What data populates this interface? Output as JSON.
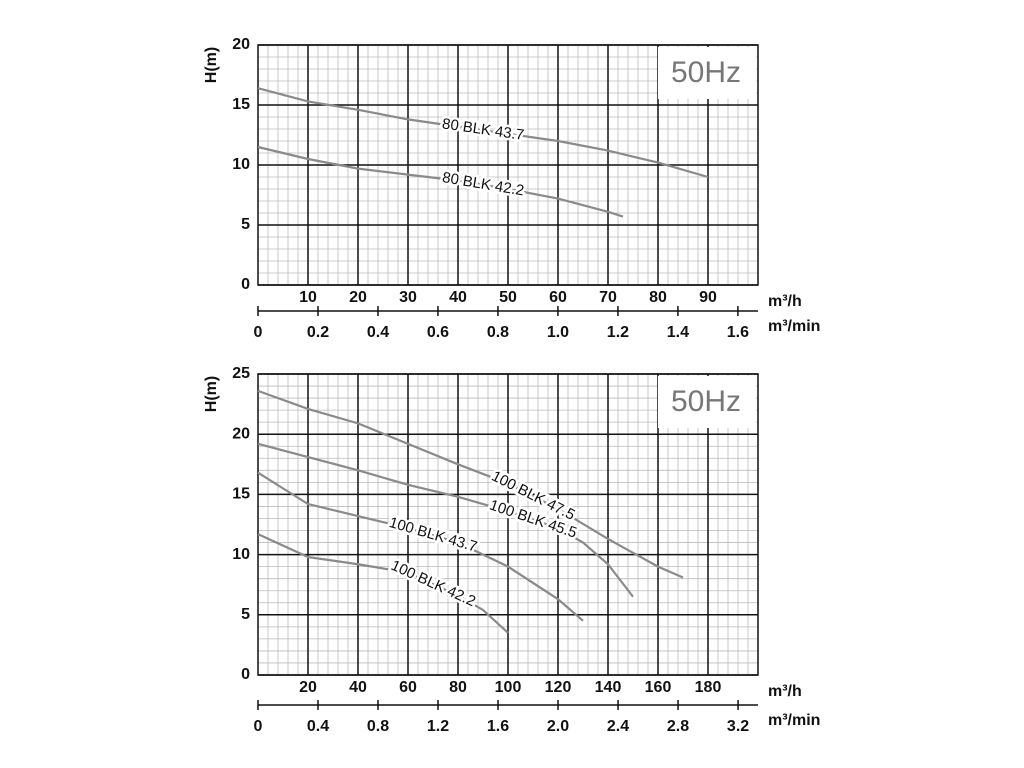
{
  "chart_data": [
    {
      "type": "line",
      "annotation": "50Hz",
      "ylabel": "H(m)",
      "xlabel": "m³/h",
      "x2label": "m³/min",
      "xlim": [
        0,
        100
      ],
      "xticks": [
        10,
        20,
        30,
        40,
        50,
        60,
        70,
        80,
        90
      ],
      "x2lim": [
        0,
        1.667
      ],
      "x2ticks": [
        0,
        0.2,
        0.4,
        0.6,
        0.8,
        {
          "value": 1,
          "label": "1.0"
        },
        1.2,
        1.4,
        1.6
      ],
      "ylim": [
        0,
        20
      ],
      "yticks": [
        0,
        5,
        10,
        15,
        20
      ],
      "grid": true,
      "minor_grid": true,
      "series": [
        {
          "name": "80 BLK 43.7",
          "color": "#8a8a8a",
          "x": [
            0,
            10,
            20,
            30,
            40,
            50,
            60,
            70,
            80,
            90
          ],
          "values": [
            16.4,
            15.3,
            14.6,
            13.8,
            13.2,
            12.6,
            12.0,
            11.2,
            10.2,
            9.0
          ]
        },
        {
          "name": "80 BLK 42.2",
          "color": "#8a8a8a",
          "x": [
            0,
            10,
            20,
            30,
            40,
            50,
            60,
            70,
            73
          ],
          "values": [
            11.5,
            10.5,
            9.7,
            9.2,
            8.7,
            8.0,
            7.2,
            6.1,
            5.7
          ]
        }
      ]
    },
    {
      "type": "line",
      "annotation": "50Hz",
      "ylabel": "H(m)",
      "xlabel": "m³/h",
      "x2label": "m³/min",
      "xlim": [
        0,
        200
      ],
      "xticks": [
        20,
        40,
        60,
        80,
        100,
        120,
        140,
        160,
        180
      ],
      "x2lim": [
        0,
        3.333
      ],
      "x2ticks": [
        0,
        0.4,
        0.8,
        1.2,
        1.6,
        {
          "value": 2,
          "label": "2.0"
        },
        2.4,
        2.8,
        3.2
      ],
      "ylim": [
        0,
        25
      ],
      "yticks": [
        0,
        5,
        10,
        15,
        20,
        25
      ],
      "grid": true,
      "minor_grid": true,
      "series": [
        {
          "name": "100 BLK 47.5",
          "color": "#8a8a8a",
          "x": [
            0,
            20,
            40,
            60,
            80,
            100,
            120,
            140,
            160,
            170
          ],
          "values": [
            23.6,
            22.1,
            20.9,
            19.2,
            17.5,
            15.9,
            13.8,
            11.3,
            9.0,
            8.1
          ]
        },
        {
          "name": "100 BLK 45.5",
          "color": "#8a8a8a",
          "x": [
            0,
            20,
            40,
            60,
            80,
            100,
            120,
            130,
            140,
            150
          ],
          "values": [
            19.2,
            18.1,
            17.0,
            15.8,
            14.8,
            13.6,
            12.2,
            11.0,
            9.2,
            6.5
          ]
        },
        {
          "name": "100 BLK 43.7",
          "color": "#8a8a8a",
          "x": [
            0,
            10,
            20,
            40,
            60,
            80,
            100,
            120,
            130
          ],
          "values": [
            16.8,
            15.5,
            14.2,
            13.2,
            12.2,
            11.0,
            9.0,
            6.3,
            4.5
          ]
        },
        {
          "name": "100 BLK 42.2",
          "color": "#8a8a8a",
          "x": [
            0,
            20,
            40,
            60,
            80,
            90,
            100
          ],
          "values": [
            11.7,
            9.8,
            9.2,
            8.5,
            6.6,
            5.4,
            3.5
          ]
        }
      ]
    }
  ]
}
